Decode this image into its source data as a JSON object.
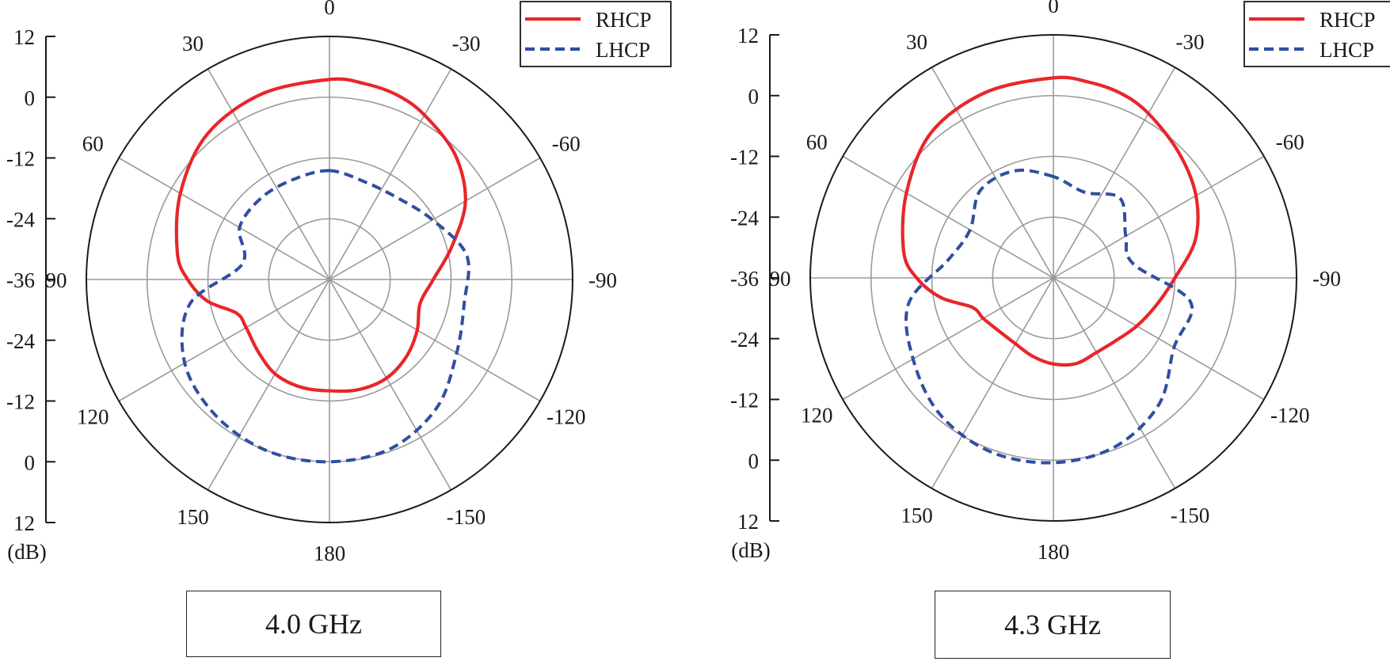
{
  "chart_data": [
    {
      "type": "polar",
      "legend_position": "top-right",
      "legend": [
        "RHCP",
        "LHCP"
      ],
      "angle_ticks": [
        "0",
        "30",
        "60",
        "90",
        "120",
        "150",
        "180",
        "-150",
        "-120",
        "-90",
        "-60",
        "-30"
      ],
      "radial_axis": {
        "ticks": [
          "12",
          "0",
          "-12",
          "-24",
          "-36",
          "-24",
          "-12",
          "0",
          "12"
        ],
        "unit": "(dB)",
        "range": [
          -36,
          12
        ]
      },
      "frequency_label": "4.0 GHz",
      "series": [
        {
          "name": "RHCP",
          "style": "solid",
          "color": "#e8262a",
          "angles": [
            0,
            20,
            40,
            60,
            80,
            90,
            100,
            110,
            120,
            135,
            150,
            165,
            180,
            195,
            210,
            225,
            240,
            255,
            270,
            285,
            300,
            315,
            330,
            340,
            350
          ],
          "values": [
            3.5,
            3.0,
            1.5,
            -2.0,
            -5.5,
            -8.0,
            -11.5,
            -16.5,
            -17.0,
            -16.0,
            -14.5,
            -14.0,
            -14.0,
            -13.5,
            -13.5,
            -14.5,
            -16.0,
            -17.5,
            -15.5,
            -11.0,
            -5.0,
            -1.0,
            1.5,
            2.8,
            3.3
          ]
        },
        {
          "name": "LHCP",
          "style": "dashed",
          "color": "#2f4fa1",
          "angles": [
            0,
            20,
            40,
            60,
            80,
            100,
            120,
            140,
            160,
            180,
            200,
            220,
            240,
            260,
            280,
            300,
            320,
            340
          ],
          "values": [
            -14.5,
            -15.0,
            -15.0,
            -15.5,
            -18.5,
            -8.0,
            -3.0,
            -1.0,
            0.0,
            0.0,
            -0.5,
            -3.0,
            -7.0,
            -9.0,
            -8.5,
            -12.5,
            -15.0,
            -15.5
          ]
        }
      ]
    },
    {
      "type": "polar",
      "legend_position": "top-right",
      "legend": [
        "RHCP",
        "LHCP"
      ],
      "angle_ticks": [
        "0",
        "30",
        "60",
        "90",
        "120",
        "150",
        "180",
        "-150",
        "-120",
        "-90",
        "-60",
        "-30"
      ],
      "radial_axis": {
        "ticks": [
          "12",
          "0",
          "-12",
          "-24",
          "-36",
          "-24",
          "-12",
          "0",
          "12"
        ],
        "unit": "(dB)",
        "range": [
          -36,
          12
        ]
      },
      "frequency_label": "4.3 GHz",
      "series": [
        {
          "name": "RHCP",
          "style": "solid",
          "color": "#e8262a",
          "angles": [
            0,
            20,
            40,
            60,
            80,
            90,
            100,
            110,
            120,
            135,
            150,
            165,
            180,
            195,
            210,
            225,
            240,
            255,
            270,
            285,
            300,
            315,
            330,
            340,
            350
          ],
          "values": [
            3.5,
            3.0,
            1.5,
            -2.5,
            -6.0,
            -9.0,
            -13.5,
            -19.0,
            -20.0,
            -21.0,
            -21.0,
            -20.0,
            -19.0,
            -18.5,
            -19.0,
            -18.5,
            -17.0,
            -15.0,
            -12.0,
            -7.0,
            -3.5,
            -1.0,
            1.5,
            2.8,
            3.3
          ]
        },
        {
          "name": "LHCP",
          "style": "dashed",
          "color": "#2f4fa1",
          "angles": [
            0,
            20,
            40,
            60,
            80,
            100,
            120,
            140,
            160,
            180,
            200,
            220,
            240,
            260,
            280,
            300,
            320,
            340
          ],
          "values": [
            -16.0,
            -13.5,
            -13.5,
            -17.0,
            -15.0,
            -7.0,
            -4.0,
            -1.0,
            0.5,
            0.5,
            -0.5,
            -3.5,
            -8.5,
            -8.5,
            -20.0,
            -19.5,
            -15.5,
            -18.0
          ]
        }
      ]
    }
  ]
}
